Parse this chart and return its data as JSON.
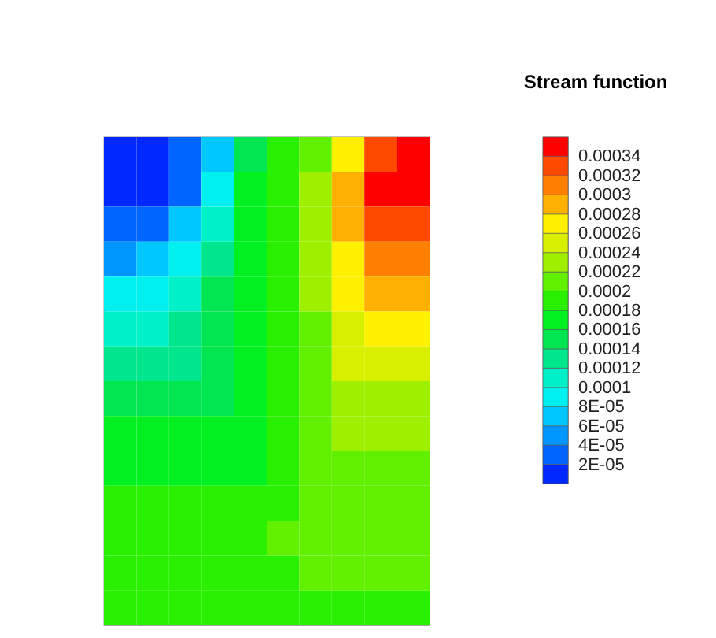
{
  "chart_data": {
    "type": "heatmap",
    "legend_title": "Stream function",
    "tick_labels": false,
    "categories": [
      null,
      null,
      null,
      null,
      null,
      null,
      null,
      null,
      null,
      null
    ],
    "y_categories": [
      null,
      null,
      null,
      null,
      null,
      null,
      null,
      null,
      null,
      null,
      null,
      null,
      null,
      null
    ],
    "cells": [
      [
        1e-05,
        1e-05,
        3e-05,
        7e-05,
        0.00015,
        0.00019,
        0.00021,
        0.00027,
        0.00033,
        0.00035
      ],
      [
        1e-05,
        1e-05,
        3e-05,
        9e-05,
        0.00017,
        0.00019,
        0.00023,
        0.00029,
        0.00035,
        0.00035
      ],
      [
        3e-05,
        3e-05,
        7e-05,
        0.00011,
        0.00017,
        0.00019,
        0.00023,
        0.00029,
        0.00033,
        0.00033
      ],
      [
        5e-05,
        7e-05,
        9e-05,
        0.00013,
        0.00017,
        0.00019,
        0.00023,
        0.00027,
        0.00031,
        0.00031
      ],
      [
        9e-05,
        9e-05,
        0.00011,
        0.00015,
        0.00017,
        0.00019,
        0.00023,
        0.00027,
        0.00029,
        0.00029
      ],
      [
        0.00011,
        0.00011,
        0.00013,
        0.00015,
        0.00017,
        0.00019,
        0.00021,
        0.00025,
        0.00027,
        0.00027
      ],
      [
        0.00013,
        0.00013,
        0.00013,
        0.00015,
        0.00017,
        0.00019,
        0.00021,
        0.00025,
        0.00025,
        0.00025
      ],
      [
        0.00015,
        0.00015,
        0.00015,
        0.00015,
        0.00017,
        0.00019,
        0.00021,
        0.00023,
        0.00023,
        0.00023
      ],
      [
        0.00017,
        0.00017,
        0.00017,
        0.00017,
        0.00017,
        0.00019,
        0.00021,
        0.00023,
        0.00023,
        0.00023
      ],
      [
        0.00017,
        0.00017,
        0.00017,
        0.00017,
        0.00017,
        0.00019,
        0.00021,
        0.00021,
        0.00021,
        0.00021
      ],
      [
        0.00019,
        0.00019,
        0.00019,
        0.00019,
        0.00019,
        0.00019,
        0.00021,
        0.00021,
        0.00021,
        0.00021
      ],
      [
        0.00019,
        0.00019,
        0.00019,
        0.00019,
        0.00019,
        0.00021,
        0.00021,
        0.00021,
        0.00021,
        0.00021
      ],
      [
        0.00019,
        0.00019,
        0.00019,
        0.00019,
        0.00019,
        0.00019,
        0.00021,
        0.00021,
        0.00021,
        0.00021
      ],
      [
        0.00019,
        0.00019,
        0.00019,
        0.00019,
        0.00019,
        0.00019,
        0.00019,
        0.00019,
        0.00019,
        0.00019
      ]
    ],
    "clim": [
      0,
      0.00036
    ],
    "cticks": [
      {
        "value": 2e-05,
        "label": "2E-05"
      },
      {
        "value": 4e-05,
        "label": "4E-05"
      },
      {
        "value": 6e-05,
        "label": "6E-05"
      },
      {
        "value": 8e-05,
        "label": "8E-05"
      },
      {
        "value": 0.0001,
        "label": "0.0001"
      },
      {
        "value": 0.00012,
        "label": "0.00012"
      },
      {
        "value": 0.00014,
        "label": "0.00014"
      },
      {
        "value": 0.00016,
        "label": "0.00016"
      },
      {
        "value": 0.00018,
        "label": "0.00018"
      },
      {
        "value": 0.0002,
        "label": "0.0002"
      },
      {
        "value": 0.00022,
        "label": "0.00022"
      },
      {
        "value": 0.00024,
        "label": "0.00024"
      },
      {
        "value": 0.00026,
        "label": "0.00026"
      },
      {
        "value": 0.00028,
        "label": "0.00028"
      },
      {
        "value": 0.0003,
        "label": "0.0003"
      },
      {
        "value": 0.00032,
        "label": "0.00032"
      },
      {
        "value": 0.00034,
        "label": "0.00034"
      }
    ],
    "colors": [
      "#0028ff",
      "#0064ff",
      "#0096ff",
      "#00c8ff",
      "#00f0f0",
      "#00f0c8",
      "#00e68c",
      "#00e650",
      "#00f020",
      "#28f000",
      "#60f000",
      "#9ef000",
      "#d8f000",
      "#fff000",
      "#ffb000",
      "#ff8000",
      "#ff4800",
      "#ff0000"
    ]
  }
}
